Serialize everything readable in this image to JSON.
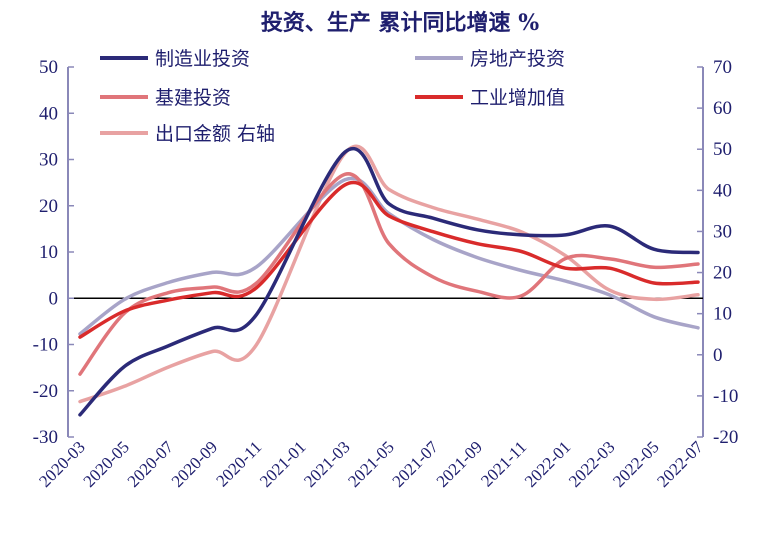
{
  "chart_data": {
    "type": "line",
    "title": "投资、生产 累计同比增速 %",
    "x": [
      "2020-03",
      "2020-05",
      "2020-07",
      "2020-09",
      "2020-11",
      "2021-01",
      "2021-03",
      "2021-05",
      "2021-07",
      "2021-09",
      "2021-11",
      "2022-01",
      "2022-03",
      "2022-05",
      "2022-07"
    ],
    "xtick_labels": [
      "2020-03",
      "2020-05",
      "2020-07",
      "2020-09",
      "2020-11",
      "2021-01",
      "2021-03",
      "2021-05",
      "2021-07",
      "2021-09",
      "2021-11",
      "2022-01",
      "2022-03",
      "2022-05",
      "2022-07"
    ],
    "ylim_left": [
      -30,
      50
    ],
    "yticks_left": [
      "50",
      "40",
      "30",
      "20",
      "10",
      "0",
      "-10",
      "-20",
      "-30"
    ],
    "ylim_right": [
      -20,
      70
    ],
    "yticks_right": [
      "70",
      "60",
      "50",
      "40",
      "30",
      "20",
      "10",
      "0",
      "-10",
      "-20"
    ],
    "grid": false,
    "legend_placement": "top",
    "series": [
      {
        "name": "制造业投资",
        "axis": "left",
        "color": "#2b2a78",
        "values": [
          -25.2,
          -14.8,
          -10.3,
          -6.5,
          -3.5,
          null,
          31.6,
          20.4,
          17.3,
          14.8,
          13.7,
          13.7,
          15.6,
          10.6,
          9.9
        ]
      },
      {
        "name": "房地产投资",
        "axis": "left",
        "color": "#a8a4c8",
        "values": [
          -7.7,
          -0.3,
          3.4,
          5.6,
          6.8,
          null,
          25.6,
          18.3,
          12.7,
          8.8,
          6.0,
          3.7,
          0.7,
          -4.0,
          -6.4
        ]
      },
      {
        "name": "基建投资",
        "axis": "left",
        "color": "#e0757a",
        "values": [
          -16.4,
          -3.3,
          1.2,
          2.4,
          3.3,
          null,
          26.8,
          11.8,
          4.6,
          1.5,
          0.5,
          8.6,
          8.5,
          6.7,
          7.4
        ]
      },
      {
        "name": "工业增加值",
        "axis": "left",
        "color": "#d92b2b",
        "values": [
          -8.4,
          -2.8,
          -0.4,
          1.2,
          2.3,
          null,
          24.5,
          17.8,
          14.4,
          11.8,
          10.1,
          6.5,
          6.5,
          3.3,
          3.5
        ]
      },
      {
        "name": "出口金额 右轴",
        "axis": "right",
        "color": "#e8a2a2",
        "values": [
          -11.4,
          -7.7,
          -3.0,
          0.8,
          2.5,
          null,
          49.0,
          40.2,
          35.8,
          33.0,
          29.9,
          24.1,
          15.7,
          13.5,
          14.6
        ]
      }
    ]
  },
  "legend": [
    {
      "label": "制造业投资",
      "color": "#2b2a78"
    },
    {
      "label": "房地产投资",
      "color": "#a8a4c8"
    },
    {
      "label": "基建投资",
      "color": "#e0757a"
    },
    {
      "label": "工业增加值",
      "color": "#d92b2b"
    },
    {
      "label": "出口金额 右轴",
      "color": "#e8a2a2"
    }
  ],
  "colors": {
    "axis": "#8a88b8",
    "text": "#1f1f6e"
  }
}
